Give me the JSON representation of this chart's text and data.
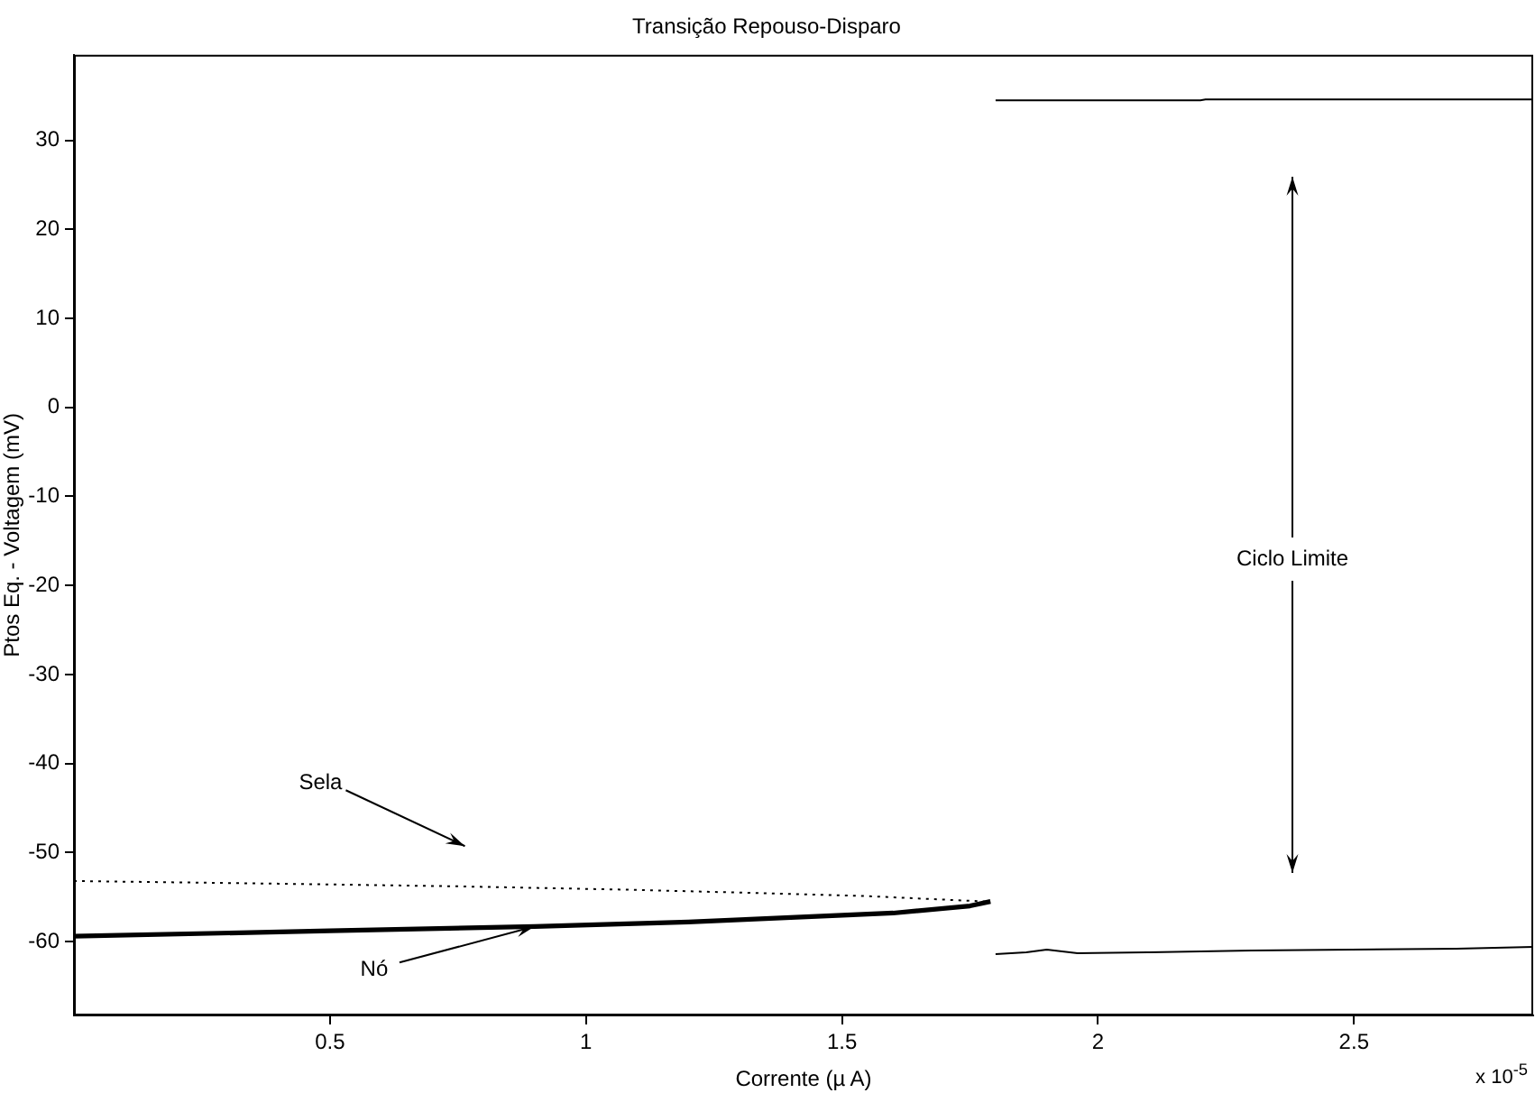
{
  "chart_data": {
    "type": "line",
    "title": "Transição Repouso-Disparo",
    "xlabel": "Corrente (µ A)",
    "ylabel": "Ptos Eq. - Voltagem (mV)",
    "xlim": [
      0,
      2.85
    ],
    "xticks": [
      0.5,
      1,
      1.5,
      2,
      2.5
    ],
    "ylim": [
      -68.3,
      39.6
    ],
    "yticks": [
      -60,
      -50,
      -40,
      -30,
      -20,
      -10,
      0,
      10,
      20,
      30
    ],
    "grid": false,
    "legend": false,
    "marker": "none",
    "series": [
      {
        "color": "#000000",
        "line_style": "dotted",
        "x": [
          0,
          0.4,
          0.75,
          1.1,
          1.3,
          1.55,
          1.78
        ],
        "values": [
          -53.2,
          -53.5,
          -53.8,
          -54.2,
          -54.5,
          -54.9,
          -55.5
        ]
      },
      {
        "color": "#000000",
        "line_style": "solid",
        "x": [
          0,
          0.5,
          0.9,
          1.2,
          1.4,
          1.6,
          1.75,
          1.79
        ],
        "values": [
          -59.4,
          -58.8,
          -58.3,
          -57.8,
          -57.3,
          -56.8,
          -56,
          -55.5
        ]
      },
      {
        "color": "#000000",
        "line_style": "solid",
        "x": [
          1.8,
          2.2,
          2.21,
          2.85
        ],
        "values": [
          34.5,
          34.5,
          34.6,
          34.6
        ]
      },
      {
        "color": "#000000",
        "line_style": "solid",
        "x": [
          1.8,
          1.86,
          1.9,
          1.96,
          2.1,
          2.3,
          2.7,
          2.85
        ],
        "values": [
          -61.4,
          -61.2,
          -60.9,
          -61.3,
          -61.2,
          -61,
          -60.8,
          -60.6
        ]
      }
    ],
    "annotations": [
      "Sela",
      {
        "text": "Nó",
        "x": 0.9,
        "y": -58.3
      },
      "Ciclo Limite",
      "x 10$^{-5}$"
    ]
  }
}
